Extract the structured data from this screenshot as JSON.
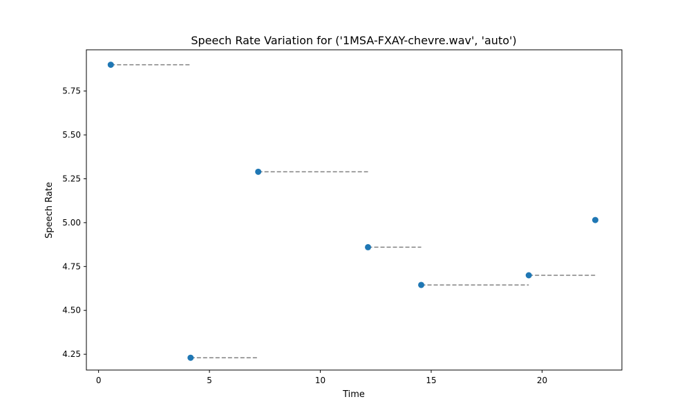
{
  "chart_data": {
    "type": "scatter",
    "title": "Speech Rate Variation for ('1MSA-FXAY-chevre.wav', 'auto')",
    "xlabel": "Time",
    "ylabel": "Speech Rate",
    "xlim": [
      -0.55,
      23.6
    ],
    "ylim": [
      4.16,
      5.985
    ],
    "x_ticks": [
      0,
      5,
      10,
      15,
      20
    ],
    "y_ticks": [
      4.25,
      4.5,
      4.75,
      5.0,
      5.25,
      5.5,
      5.75
    ],
    "x_tick_labels": [
      "0",
      "5",
      "10",
      "15",
      "20"
    ],
    "y_tick_labels": [
      "4.25",
      "4.50",
      "4.75",
      "5.00",
      "5.25",
      "5.50",
      "5.75"
    ],
    "grid": false,
    "point_color": "#1f77b4",
    "segment_color": "#808080",
    "points": [
      {
        "x": 0.55,
        "y": 5.9
      },
      {
        "x": 4.15,
        "y": 4.23
      },
      {
        "x": 7.2,
        "y": 5.29
      },
      {
        "x": 12.15,
        "y": 4.86
      },
      {
        "x": 14.55,
        "y": 4.645
      },
      {
        "x": 19.4,
        "y": 4.7
      },
      {
        "x": 22.4,
        "y": 5.015
      }
    ],
    "segments": [
      {
        "x_start": 0.55,
        "x_end": 4.15,
        "y": 5.9
      },
      {
        "x_start": 4.15,
        "x_end": 7.2,
        "y": 4.23
      },
      {
        "x_start": 7.2,
        "x_end": 12.15,
        "y": 5.29
      },
      {
        "x_start": 12.15,
        "x_end": 14.55,
        "y": 4.86
      },
      {
        "x_start": 14.55,
        "x_end": 19.4,
        "y": 4.645
      },
      {
        "x_start": 19.4,
        "x_end": 22.4,
        "y": 4.7
      }
    ]
  }
}
